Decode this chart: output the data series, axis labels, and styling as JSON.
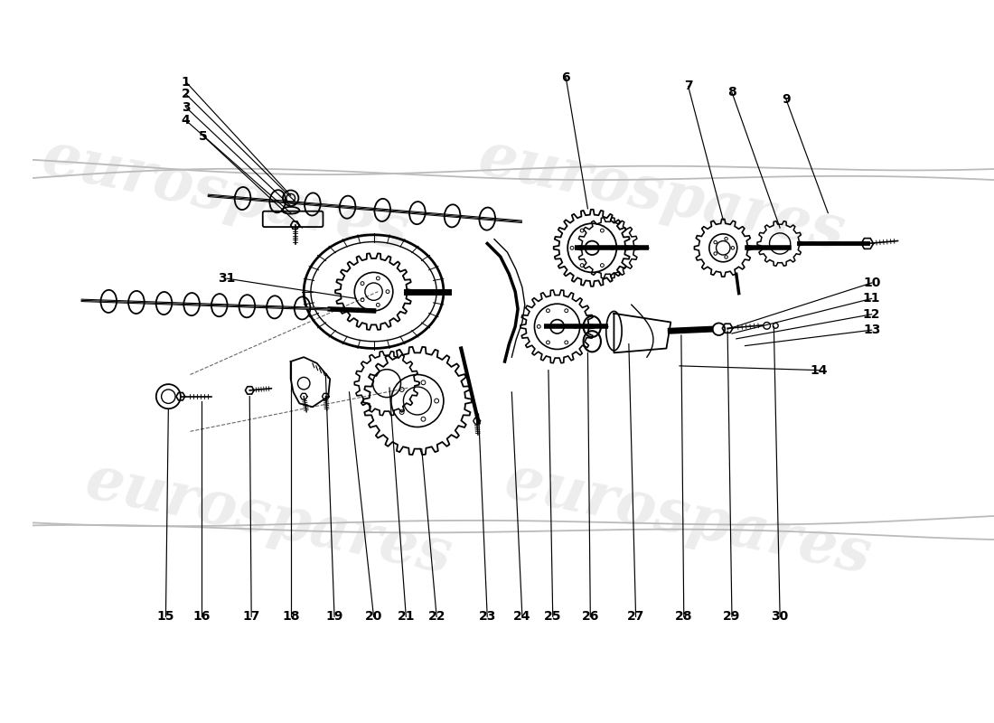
{
  "background_color": "#ffffff",
  "watermark_text": "eurospares",
  "watermark_color": "#d8d8d8",
  "line_color": "#000000",
  "text_color": "#000000",
  "font_size_labels": 10,
  "font_size_watermark": 48,
  "label_fontsize": 10
}
